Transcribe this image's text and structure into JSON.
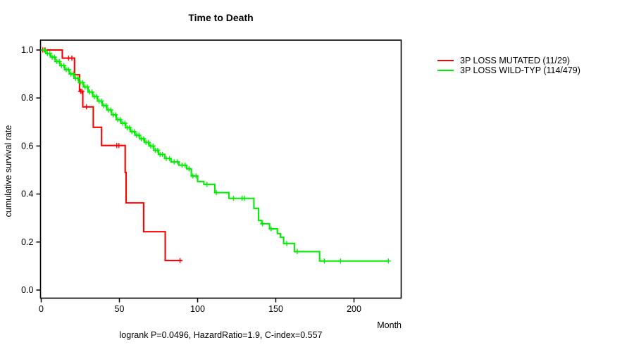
{
  "title": "Time to Death",
  "footer": "logrank P=0.0496, HazardRatio=1.9, C-index=0.557",
  "x_axis": {
    "label": "Month",
    "ticks": [
      0,
      50,
      100,
      150,
      200
    ]
  },
  "y_axis": {
    "label": "cumulative survival rate",
    "ticks": [
      0.0,
      0.2,
      0.4,
      0.6,
      0.8,
      1.0
    ]
  },
  "legend": [
    {
      "label": "3P LOSS MUTATED (11/29)",
      "color": "#ff0000"
    },
    {
      "label": "3P LOSS WILD-TYP (114/479)",
      "color": "#00ee00"
    }
  ],
  "chart_data": {
    "type": "line",
    "subtype": "kaplan-meier-step",
    "title": "Time to Death",
    "xlabel": "Month",
    "ylabel": "cumulative survival rate",
    "xlim": [
      0,
      230
    ],
    "ylim": [
      0.0,
      1.0
    ],
    "grid": false,
    "legend_position": "right-outside",
    "annotation": "logrank P=0.0496, HazardRatio=1.9, C-index=0.557",
    "series": [
      {
        "name": "3P LOSS MUTATED (11/29)",
        "color": "#ff0000",
        "events": 11,
        "n": 29,
        "steps": [
          [
            0,
            1.0
          ],
          [
            13.5,
            0.966
          ],
          [
            21.3,
            0.897
          ],
          [
            24.5,
            0.828
          ],
          [
            26.6,
            0.763
          ],
          [
            33.3,
            0.678
          ],
          [
            38.6,
            0.602
          ],
          [
            53.7,
            0.49
          ],
          [
            54.3,
            0.363
          ],
          [
            65.5,
            0.243
          ],
          [
            79.3,
            0.123
          ]
        ],
        "end_month": 90,
        "censor_months": [
          1,
          2.5,
          17.5,
          19.6,
          25.2,
          26.0,
          28.9,
          48.3,
          49.7,
          88.8
        ]
      },
      {
        "name": "3P LOSS WILD-TYP (114/479)",
        "color": "#00ee00",
        "events": 114,
        "n": 479,
        "steps": [
          [
            0,
            1.0
          ],
          [
            3,
            0.985
          ],
          [
            6,
            0.97
          ],
          [
            9,
            0.952
          ],
          [
            12,
            0.935
          ],
          [
            15,
            0.918
          ],
          [
            18,
            0.9
          ],
          [
            21,
            0.882
          ],
          [
            24,
            0.864
          ],
          [
            27,
            0.846
          ],
          [
            30,
            0.825
          ],
          [
            33,
            0.806
          ],
          [
            36,
            0.787
          ],
          [
            39,
            0.768
          ],
          [
            42,
            0.75
          ],
          [
            45,
            0.73
          ],
          [
            48,
            0.71
          ],
          [
            51,
            0.695
          ],
          [
            54,
            0.676
          ],
          [
            57,
            0.66
          ],
          [
            60,
            0.645
          ],
          [
            63,
            0.63
          ],
          [
            66,
            0.615
          ],
          [
            69,
            0.6
          ],
          [
            72,
            0.582
          ],
          [
            75,
            0.565
          ],
          [
            79,
            0.548
          ],
          [
            83,
            0.534
          ],
          [
            88,
            0.52
          ],
          [
            93,
            0.505
          ],
          [
            96,
            0.475
          ],
          [
            100,
            0.452
          ],
          [
            104,
            0.44
          ],
          [
            111,
            0.406
          ],
          [
            120,
            0.382
          ],
          [
            136,
            0.34
          ],
          [
            139,
            0.29
          ],
          [
            141,
            0.276
          ],
          [
            146,
            0.255
          ],
          [
            151,
            0.235
          ],
          [
            153,
            0.22
          ],
          [
            155,
            0.194
          ],
          [
            162,
            0.16
          ],
          [
            178,
            0.121
          ]
        ],
        "end_month": 222,
        "censor_months": [
          2,
          4,
          5.5,
          7,
          8.5,
          10,
          11.5,
          13,
          14.5,
          16,
          17.5,
          19,
          20.5,
          22,
          23.5,
          25,
          26.5,
          28,
          29.5,
          31,
          32.5,
          34,
          35.5,
          37,
          38.5,
          40,
          41.5,
          43,
          44.5,
          46,
          47.5,
          49,
          50.5,
          52,
          53.5,
          55,
          56.5,
          58,
          59.5,
          61,
          62.5,
          64,
          65.5,
          67,
          68.5,
          70,
          71.5,
          73,
          74.5,
          76,
          77.5,
          80,
          82,
          85,
          87,
          90,
          92,
          94.5,
          97,
          99,
          106,
          112,
          123,
          128.5,
          130,
          141.5,
          147,
          157,
          163.7,
          181,
          191.4,
          222
        ]
      }
    ]
  },
  "style": {
    "axis_color": "#000000",
    "text_color": "#000000",
    "background": "#ffffff"
  }
}
